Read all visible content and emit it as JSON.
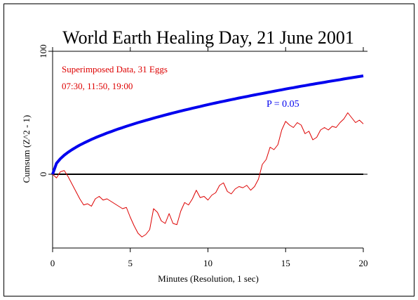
{
  "chart_data": {
    "type": "line",
    "title": "World Earth Healing Day, 21 June 2001",
    "xlabel": "Minutes (Resolution, 1 sec)",
    "ylabel": "Cumsum (Z^2 - 1)",
    "annotations": [
      "07:30, 11:50, 19:00"
    ],
    "xlim": [
      0,
      20
    ],
    "ylim": [
      -60,
      100
    ],
    "xticks": [
      0,
      5,
      10,
      15,
      20
    ],
    "yticks": [
      0,
      100
    ],
    "x": [
      0,
      0.25,
      0.5,
      0.75,
      1,
      1.25,
      1.5,
      1.75,
      2,
      2.25,
      2.5,
      2.75,
      3,
      3.25,
      3.5,
      3.75,
      4,
      4.25,
      4.5,
      4.75,
      5,
      5.25,
      5.5,
      5.75,
      6,
      6.25,
      6.5,
      6.75,
      7,
      7.25,
      7.5,
      7.75,
      8,
      8.25,
      8.5,
      8.75,
      9,
      9.25,
      9.5,
      9.75,
      10,
      10.25,
      10.5,
      10.75,
      11,
      11.25,
      11.5,
      11.75,
      12,
      12.25,
      12.5,
      12.75,
      13,
      13.25,
      13.5,
      13.75,
      14,
      14.25,
      14.5,
      14.75,
      15,
      15.25,
      15.5,
      15.75,
      16,
      16.25,
      16.5,
      16.75,
      17,
      17.25,
      17.5,
      17.75,
      18,
      18.25,
      18.5,
      18.75,
      19,
      19.25,
      19.5,
      19.75,
      20
    ],
    "series": [
      {
        "name": "Superimposed Data, 31 Eggs",
        "color": "#dd0000",
        "width": 1,
        "values": [
          0,
          -3,
          2,
          3,
          -2,
          -8,
          -14,
          -20,
          -25,
          -24,
          -26,
          -20,
          -18,
          -21,
          -20,
          -22,
          -24,
          -26,
          -28,
          -27,
          -35,
          -42,
          -48,
          -51,
          -49,
          -45,
          -28,
          -31,
          -38,
          -40,
          -32,
          -40,
          -41,
          -30,
          -23,
          -25,
          -20,
          -13,
          -19,
          -18,
          -21,
          -17,
          -15,
          -9,
          -7,
          -14,
          -16,
          -12,
          -10,
          -11,
          -9,
          -13,
          -10,
          -4,
          8,
          12,
          22,
          20,
          24,
          36,
          43,
          40,
          38,
          42,
          40,
          33,
          35,
          28,
          30,
          36,
          38,
          36,
          39,
          38,
          42,
          45,
          50,
          46,
          42,
          44,
          41
        ]
      },
      {
        "name": "P = 0.05",
        "color": "#0000ee",
        "width": 4,
        "values": [
          0,
          8.9,
          12.6,
          15.5,
          17.9,
          20,
          21.9,
          23.7,
          25.3,
          26.8,
          28.3,
          29.7,
          31,
          32.2,
          33.5,
          34.6,
          35.8,
          36.9,
          37.9,
          39,
          40,
          41,
          42,
          42.9,
          43.8,
          44.7,
          45.6,
          46.5,
          47.3,
          48.2,
          49,
          49.8,
          50.6,
          51.4,
          52.2,
          52.9,
          53.7,
          54.4,
          55.1,
          55.9,
          56.6,
          57.3,
          58,
          58.7,
          59.3,
          60,
          60.7,
          61.3,
          62,
          62.6,
          63.2,
          63.9,
          64.5,
          65.1,
          65.7,
          66.3,
          66.9,
          67.5,
          68.1,
          68.7,
          69.3,
          69.9,
          70.4,
          71,
          71.6,
          72.1,
          72.7,
          73.2,
          73.8,
          74.3,
          74.8,
          75.4,
          75.9,
          76.4,
          76.9,
          77.5,
          78,
          78.5,
          79,
          79.5,
          80
        ]
      }
    ]
  }
}
